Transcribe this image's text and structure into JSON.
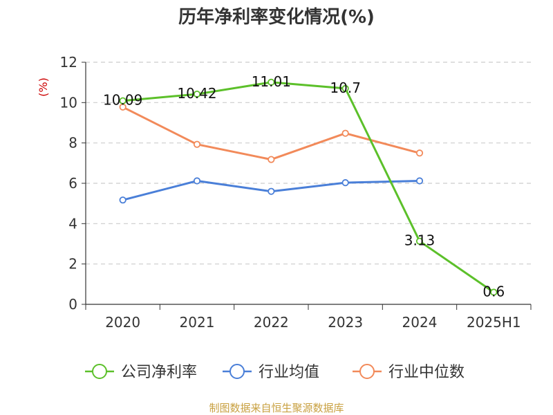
{
  "chart_data": {
    "type": "line",
    "title": "历年净利率变化情况(%)",
    "ylabel": "(%)",
    "categories": [
      "2020",
      "2021",
      "2022",
      "2023",
      "2024",
      "2025H1"
    ],
    "ylim": [
      0,
      12
    ],
    "yticks": [
      0,
      2,
      4,
      6,
      8,
      10,
      12
    ],
    "grid": true,
    "legend_position": "bottom",
    "series": [
      {
        "name": "公司净利率",
        "color": "#5cc02a",
        "values": [
          10.09,
          10.42,
          11.01,
          10.7,
          3.13,
          0.6
        ],
        "labels": [
          "10.09",
          "10.42",
          "11.01",
          "10.7",
          "3.13",
          "0.6"
        ]
      },
      {
        "name": "行业均值",
        "color": "#4a7fd8",
        "values": [
          5.17,
          6.12,
          5.6,
          6.03,
          6.12,
          null
        ]
      },
      {
        "name": "行业中位数",
        "color": "#f28a5a",
        "values": [
          9.78,
          7.93,
          7.18,
          8.48,
          7.5,
          null
        ]
      }
    ]
  },
  "source_text": "制图数据来自恒生聚源数据库"
}
